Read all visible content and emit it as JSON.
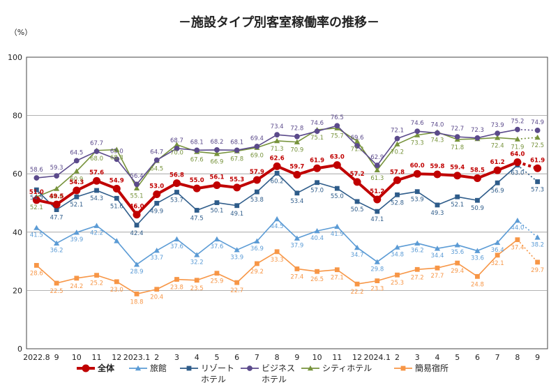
{
  "chart_data": {
    "type": "line",
    "title": "－施設タイプ別客室稼働率の推移－",
    "y_unit_label": "（%）",
    "ylim": [
      0,
      100
    ],
    "y_ticks": [
      "0",
      "20",
      "40",
      "60",
      "80",
      "100"
    ],
    "grid": true,
    "x_tick_labels": [
      "2022.8",
      "9",
      "10",
      "11",
      "12",
      "2023.1",
      "2",
      "3",
      "4",
      "5",
      "6",
      "7",
      "8",
      "9",
      "10",
      "11",
      "12",
      "2024.1",
      "2",
      "3",
      "4",
      "5",
      "6",
      "7",
      "8",
      "9"
    ],
    "legend_position": "bottom",
    "series": [
      {
        "name": "全体",
        "legend_lines": [
          "全体"
        ],
        "color": "#c00000",
        "marker": "circle",
        "bold": true,
        "values": [
          51.0,
          49.5,
          54.3,
          57.6,
          54.9,
          46.0,
          53.0,
          56.8,
          55.0,
          56.1,
          55.3,
          57.9,
          62.6,
          59.7,
          61.9,
          63.0,
          57.2,
          51.2,
          57.8,
          60.0,
          59.8,
          59.4,
          58.5,
          61.2,
          64.0,
          61.9
        ],
        "labels": [
          "51.0",
          "49.5",
          "54.3",
          "57.6",
          "54.9",
          "46.0",
          "53.0",
          "56.8",
          "55.0",
          "56.1",
          "55.3",
          "57.9",
          "62.6",
          "59.7",
          "61.9",
          "63.0",
          "57.2",
          "51.2",
          "57.8",
          "60.0",
          "59.8",
          "59.4",
          "58.5",
          "61.2",
          "64.0",
          "61.9"
        ]
      },
      {
        "name": "旅館",
        "legend_lines": [
          "旅館"
        ],
        "color": "#5b9bd5",
        "marker": "triangle",
        "values": [
          41.5,
          36.2,
          39.9,
          42.2,
          37.0,
          28.9,
          33.7,
          37.6,
          32.2,
          37.6,
          33.9,
          36.9,
          44.5,
          37.9,
          40.4,
          41.9,
          34.7,
          29.8,
          34.8,
          36.2,
          34.4,
          35.6,
          33.6,
          36.4,
          44.0,
          38.2
        ],
        "labels": [
          "41.5",
          "36.2",
          "39.9",
          "42.2",
          "",
          "28.9",
          "33.7",
          "37.6",
          "32.2",
          "37.6",
          "33.9",
          "36.9",
          "44.5",
          "37.9",
          "40.4",
          "41.9",
          "34.7",
          "29.8",
          "34.8",
          "36.2",
          "34.4",
          "35.6",
          "33.6",
          "36.4",
          "44.0",
          "38.2"
        ]
      },
      {
        "name": "リゾートホテル",
        "legend_lines": [
          "リゾート",
          "ホテル"
        ],
        "color": "#2e5c8a",
        "marker": "square",
        "values": [
          54.5,
          47.7,
          52.1,
          54.3,
          51.6,
          42.4,
          49.9,
          53.7,
          47.5,
          50.1,
          49.1,
          53.8,
          60.2,
          53.4,
          57.0,
          55.0,
          50.5,
          47.1,
          52.8,
          53.9,
          49.3,
          52.1,
          50.9,
          56.9,
          63.0,
          57.3
        ],
        "labels": [
          "54.5",
          "47.7",
          "52.1",
          "54.3",
          "51.6",
          "42.4",
          "49.9",
          "53.7",
          "47.5",
          "50.1",
          "49.1",
          "53.8",
          "60.2",
          "53.4",
          "57.0",
          "55.0",
          "50.5",
          "47.1",
          "52.8",
          "53.9",
          "49.3",
          "52.1",
          "50.9",
          "56.9",
          "63.0",
          "57.3"
        ]
      },
      {
        "name": "ビジネスホテル",
        "legend_lines": [
          "ビジネス",
          "ホテル"
        ],
        "color": "#5b4a8b",
        "marker": "circle",
        "values": [
          58.6,
          59.3,
          64.5,
          67.7,
          65.0,
          56.4,
          64.7,
          68.7,
          68.1,
          68.2,
          68.1,
          69.4,
          73.4,
          72.8,
          74.6,
          76.5,
          69.6,
          62.9,
          72.1,
          74.6,
          74.0,
          72.7,
          72.3,
          73.9,
          75.2,
          74.9
        ],
        "labels": [
          "58.6",
          "59.3",
          "64.5",
          "67.7",
          "65.0",
          "56.4",
          "64.7",
          "68.7",
          "68.1",
          "68.2",
          "68.1",
          "69.4",
          "73.4",
          "72.8",
          "74.6",
          "76.5",
          "69.6",
          "62.9",
          "72.1",
          "74.6",
          "74.0",
          "72.7",
          "72.3",
          "73.9",
          "75.2",
          "74.9"
        ]
      },
      {
        "name": "シティホテル",
        "legend_lines": [
          "シティホテル"
        ],
        "color": "#77933c",
        "marker": "triangle",
        "values": [
          52.1,
          54.9,
          60.9,
          68.0,
          68.3,
          55.1,
          64.5,
          70.0,
          67.6,
          66.9,
          67.8,
          69.0,
          71.3,
          70.9,
          75.1,
          75.7,
          71.2,
          61.3,
          70.2,
          73.3,
          74.3,
          71.8,
          72.0,
          72.4,
          71.9,
          72.5
        ],
        "labels": [
          "52.1",
          "54.9",
          "60.9",
          "68.0",
          "68.3",
          "55.1",
          "64.5",
          "70.0",
          "67.6",
          "66.9",
          "67.8",
          "69.0",
          "71.3",
          "70.9",
          "75.1",
          "75.7",
          "71.2",
          "61.3",
          "70.2",
          "73.3",
          "74.3",
          "71.8",
          "",
          "72.4",
          "71.9",
          "72.5"
        ]
      },
      {
        "name": "簡易宿所",
        "legend_lines": [
          "簡易宿所"
        ],
        "color": "#f79646",
        "marker": "square",
        "values": [
          28.6,
          22.5,
          24.2,
          25.2,
          23.0,
          18.8,
          20.4,
          23.8,
          23.5,
          25.9,
          22.7,
          29.2,
          33.3,
          27.4,
          26.5,
          27.1,
          22.2,
          23.3,
          25.3,
          27.2,
          27.7,
          29.4,
          24.8,
          32.1,
          37.4,
          29.7
        ],
        "labels": [
          "28.6",
          "22.5",
          "24.2",
          "25.2",
          "23.0",
          "18.8",
          "20.4",
          "23.8",
          "23.5",
          "25.9",
          "22.7",
          "29.2",
          "33.3",
          "27.4",
          "26.5",
          "27.1",
          "22.2",
          "23.3",
          "25.3",
          "27.2",
          "27.7",
          "29.4",
          "24.8",
          "32.1",
          "37.4",
          "29.7"
        ]
      }
    ]
  }
}
